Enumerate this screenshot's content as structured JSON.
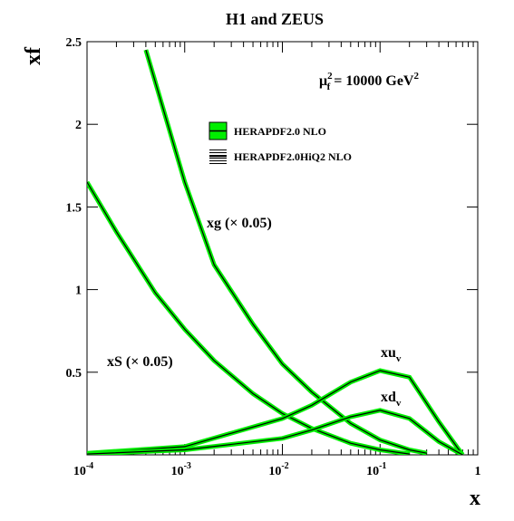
{
  "chart_data": {
    "type": "line",
    "title": "H1 and ZEUS",
    "ylabel": "xf",
    "xlabel": "x",
    "xscale": "log",
    "xlim": [
      0.0001,
      1
    ],
    "ylim": [
      0,
      2.5
    ],
    "xticks": [
      {
        "value": 0.0001,
        "label": "10",
        "power": "-4"
      },
      {
        "value": 0.001,
        "label": "10",
        "power": "-3"
      },
      {
        "value": 0.01,
        "label": "10",
        "power": "-2"
      },
      {
        "value": 0.1,
        "label": "10",
        "power": "-1"
      },
      1
    ],
    "yticks": [
      0.5,
      1,
      1.5,
      2,
      2.5
    ],
    "annotation": {
      "base": "μ",
      "sup": "2",
      "sub": "f",
      "text": " = 10000 GeV",
      "unit_sup": "2"
    },
    "legend": [
      {
        "name": "HERAPDF2.0 NLO",
        "color": "#00ee00"
      },
      {
        "name": "HERAPDF2.0HiQ2 NLO",
        "color": "#000000"
      }
    ],
    "series": [
      {
        "name": "xg (× 0.05)",
        "color": "#000000",
        "x": [
          0.0004,
          0.001,
          0.002,
          0.005,
          0.01,
          0.02,
          0.05,
          0.1,
          0.2,
          0.3
        ],
        "values": [
          2.45,
          1.65,
          1.15,
          0.79,
          0.55,
          0.38,
          0.19,
          0.09,
          0.03,
          0.01
        ]
      },
      {
        "name": "xS (× 0.05)",
        "color": "#000000",
        "x": [
          0.0001,
          0.0002,
          0.0005,
          0.001,
          0.002,
          0.005,
          0.01,
          0.02,
          0.05,
          0.1,
          0.2
        ],
        "values": [
          1.65,
          1.35,
          0.98,
          0.76,
          0.57,
          0.37,
          0.25,
          0.16,
          0.07,
          0.03,
          0.005
        ]
      },
      {
        "name": "xu",
        "subscript": "v",
        "color": "#000000",
        "x": [
          0.0001,
          0.001,
          0.01,
          0.02,
          0.05,
          0.1,
          0.2,
          0.4,
          0.7
        ],
        "values": [
          0.01,
          0.05,
          0.22,
          0.3,
          0.44,
          0.51,
          0.47,
          0.2,
          0.0
        ]
      },
      {
        "name": "xd",
        "subscript": "v",
        "color": "#000000",
        "x": [
          0.0001,
          0.001,
          0.01,
          0.02,
          0.05,
          0.1,
          0.2,
          0.4,
          0.7
        ],
        "values": [
          0.005,
          0.03,
          0.1,
          0.15,
          0.23,
          0.27,
          0.22,
          0.08,
          0.0
        ]
      }
    ]
  }
}
